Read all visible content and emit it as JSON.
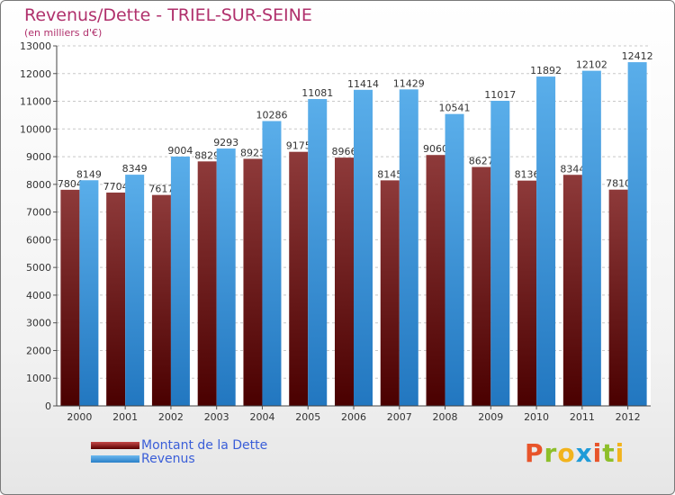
{
  "chart_data": {
    "type": "bar",
    "title": "Revenus/Dette - TRIEL-SUR-SEINE",
    "subtitle": "(en milliers d'€)",
    "categories": [
      "2000",
      "2001",
      "2002",
      "2003",
      "2004",
      "2005",
      "2006",
      "2007",
      "2008",
      "2009",
      "2010",
      "2011",
      "2012"
    ],
    "series": [
      {
        "name": "Montant de la Dette",
        "values": [
          7804,
          7704,
          7617,
          8829,
          8923,
          9175,
          8966,
          8145,
          9060,
          8627,
          8136,
          8344,
          7810
        ],
        "labels": [
          "7804",
          "7704",
          "7617",
          "8829",
          "8923",
          "9175",
          "8966",
          "8145",
          "9060",
          "8627",
          "8136",
          "8344",
          "7810"
        ],
        "color": "#8b2b2b"
      },
      {
        "name": "Revenus",
        "values": [
          8149,
          8349,
          9004,
          9293,
          10286,
          11081,
          11414,
          11429,
          10541,
          11017,
          11892,
          12102,
          12412
        ],
        "labels": [
          "8149",
          "8349",
          "9004",
          "9293",
          "10286",
          "11081",
          "11414",
          "11429",
          "10541",
          "11017",
          "11892",
          "12102",
          "12412"
        ],
        "color": "#4aa3e6"
      }
    ],
    "yticks": [
      "0",
      "1000",
      "2000",
      "3000",
      "4000",
      "5000",
      "6000",
      "7000",
      "8000",
      "9000",
      "10000",
      "11000",
      "12000",
      "13000"
    ],
    "ylim": [
      0,
      13000
    ],
    "grid": true,
    "legend": "bottom-left"
  },
  "logo": {
    "p": "P",
    "r": "r",
    "o": "o",
    "x": "x",
    "i": "i",
    "t": "t",
    "i2": "i"
  }
}
